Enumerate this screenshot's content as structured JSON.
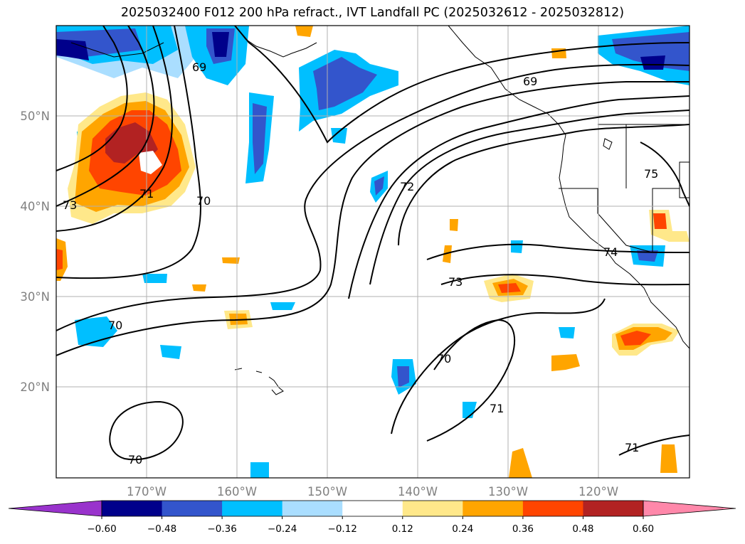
{
  "title": "2025032400 F012 200 hPa refract., IVT Landfall PC (2025032612 - 2025032812)",
  "map": {
    "lat_ticks": [
      "50°N",
      "40°N",
      "30°N",
      "20°N"
    ],
    "lon_ticks": [
      "170°W",
      "160°W",
      "150°W",
      "140°W",
      "130°W",
      "120°W"
    ],
    "contour_labels": [
      "73",
      "71",
      "70",
      "69",
      "72",
      "73",
      "74",
      "75",
      "70",
      "70",
      "71",
      "70",
      "71"
    ]
  },
  "colorbar": {
    "colors": [
      "#9933cc",
      "#00008b",
      "#3355cc",
      "#00bfff",
      "#aadeff",
      "#ffffff",
      "#ffe88a",
      "#ffa500",
      "#ff4500",
      "#b22222",
      "#ff88aa"
    ],
    "ticks": [
      "−0.60",
      "−0.48",
      "−0.36",
      "−0.24",
      "−0.12",
      "0.12",
      "0.24",
      "0.36",
      "0.48",
      "0.60"
    ]
  }
}
